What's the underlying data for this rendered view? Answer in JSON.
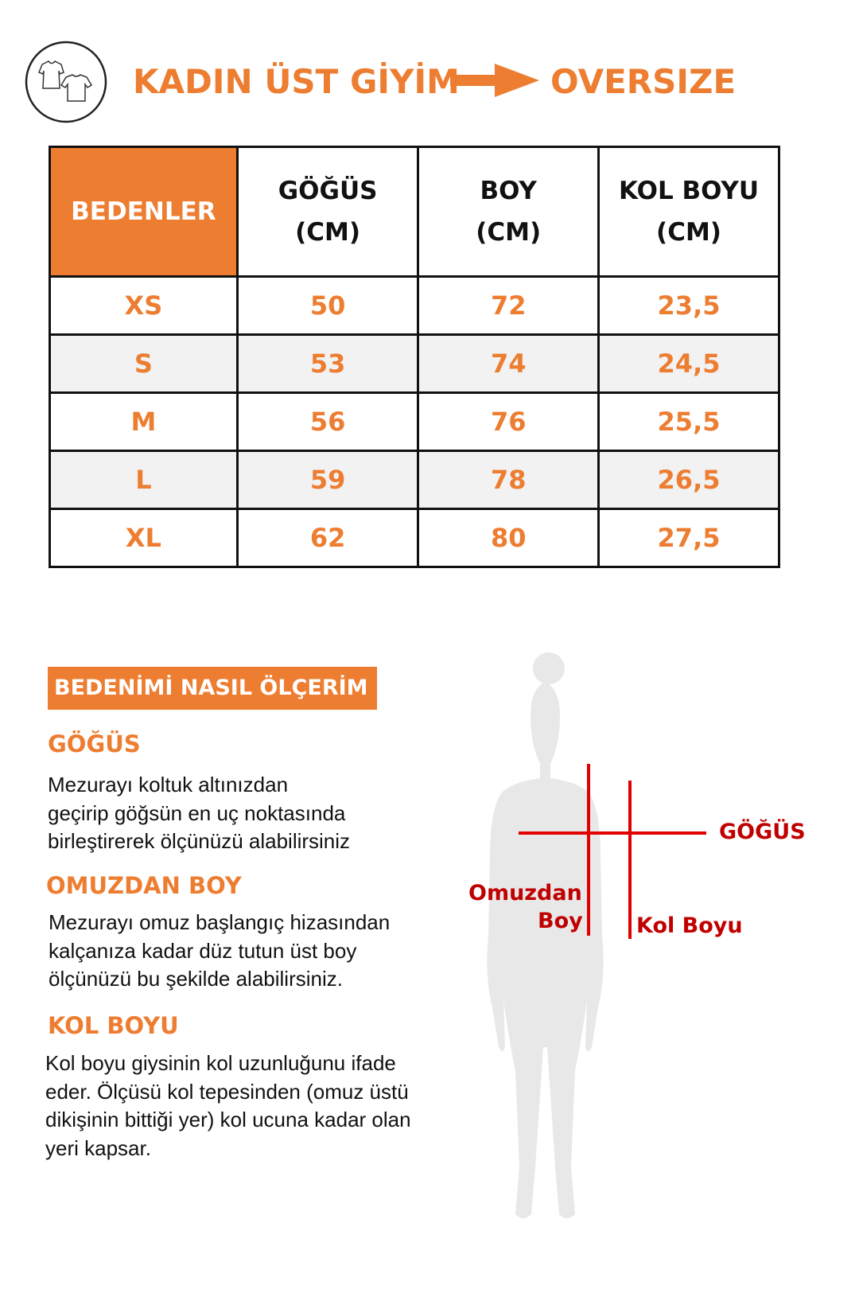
{
  "header": {
    "title": "KADIN ÜST GİYİM",
    "fit": "OVERSIZE",
    "icon": "tshirts-icon",
    "arrow_icon": "arrow-right-icon"
  },
  "colors": {
    "accent": "#ED7D31",
    "label_red": "#C00000",
    "alt_row": "#F2F2F2"
  },
  "table": {
    "headers": [
      [
        "BEDENLER"
      ],
      [
        "GÖĞÜS",
        "(CM)"
      ],
      [
        "BOY",
        "(CM)"
      ],
      [
        "KOL BOYU",
        "(CM)"
      ]
    ],
    "rows": [
      [
        "XS",
        "50",
        "72",
        "23,5"
      ],
      [
        "S",
        "53",
        "74",
        "24,5"
      ],
      [
        "M",
        "56",
        "76",
        "25,5"
      ],
      [
        "L",
        "59",
        "78",
        "26,5"
      ],
      [
        "XL",
        "62",
        "80",
        "27,5"
      ]
    ]
  },
  "guide": {
    "title": "BEDENİMİ NASIL ÖLÇERİM",
    "sections": [
      {
        "heading": "GÖĞÜS",
        "lines": [
          "Mezurayı koltuk altınızdan",
          "geçirip göğsün en uç noktasında",
          "birleştirerek ölçünüzü alabilirsiniz"
        ]
      },
      {
        "heading": "OMUZDAN BOY",
        "lines": [
          "Mezurayı omuz başlangıç hizasından",
          "kalçanıza kadar düz tutun üst boy",
          "ölçünüzü bu şekilde alabilirsiniz."
        ]
      },
      {
        "heading": "KOL BOYU",
        "lines": [
          "Kol boyu giysinin kol uzunluğunu ifade",
          "eder. Ölçüsü kol tepesinden (omuz üstü",
          "dikişinin bittiği yer) kol ucuna kadar olan",
          "yeri kapsar."
        ]
      }
    ]
  },
  "figure": {
    "labels": {
      "chest": "GÖĞÜS",
      "length_1": "Omuzdan",
      "length_2": "Boy",
      "sleeve": "Kol Boyu"
    }
  }
}
